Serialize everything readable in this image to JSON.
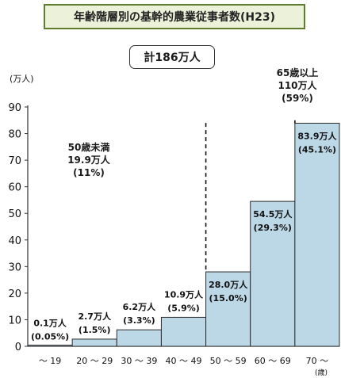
{
  "header": {
    "title": "年齢階層別の基幹的農業従事者数(H23)",
    "total": "計186万人"
  },
  "annotations": {
    "under50": [
      "50歳未満",
      "19.9万人",
      "(11%)"
    ],
    "over65": [
      "65歳以上",
      "110万人",
      "(59%)"
    ]
  },
  "chart_data": {
    "type": "bar",
    "title": "年齢階層別の基幹的農業従事者数(H23)",
    "categories": [
      "～ 19",
      "20 ～ 29",
      "30 ～ 39",
      "40 ～ 49",
      "50 ～ 59",
      "60 ～ 69",
      "70 ～"
    ],
    "values": [
      0.1,
      2.7,
      6.2,
      10.9,
      28.0,
      54.5,
      83.9
    ],
    "value_labels": [
      "0.1万人",
      "2.7万人",
      "6.2万人",
      "10.9万人",
      "28.0万人",
      "54.5万人",
      "83.9万人"
    ],
    "percent_labels": [
      "(0.05%)",
      "(1.5%)",
      "(3.3%)",
      "(5.9%)",
      "(15.0%)",
      "(29.3%)",
      "(45.1%)"
    ],
    "ylabel": "(万人)",
    "xlabel": "(歳)",
    "ylim": [
      0,
      90
    ],
    "yticks": [
      0,
      10,
      20,
      30,
      40,
      50,
      60,
      70,
      80,
      90
    ],
    "grid": false,
    "dashed_dividers_after": [
      "40 ～ 49",
      "60 ～ 69"
    ],
    "colors": {
      "bar_fill": "#bcd8e7",
      "bar_stroke": "#2b2b2b",
      "axis": "#333333"
    }
  }
}
